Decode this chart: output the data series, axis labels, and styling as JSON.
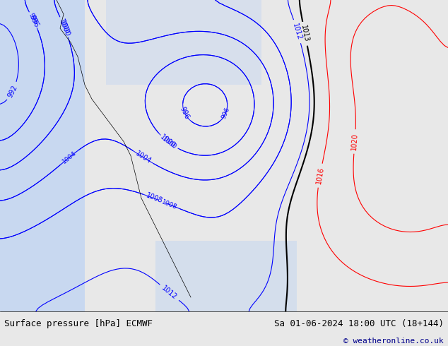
{
  "title_left": "Surface pressure [hPa] ECMWF",
  "title_right": "Sa 01-06-2024 18:00 UTC (18+144)",
  "copyright": "© weatheronline.co.uk",
  "bg_color": "#e8e8e8",
  "map_bg": "#d4edb8",
  "water_color": "#c8d8f0",
  "land_color": "#c8e8a0",
  "bottom_bar_color": "#ffffff",
  "bottom_text_color": "#000000",
  "fig_width": 6.34,
  "fig_height": 4.9,
  "dpi": 100,
  "bottom_bar_height": 0.1
}
